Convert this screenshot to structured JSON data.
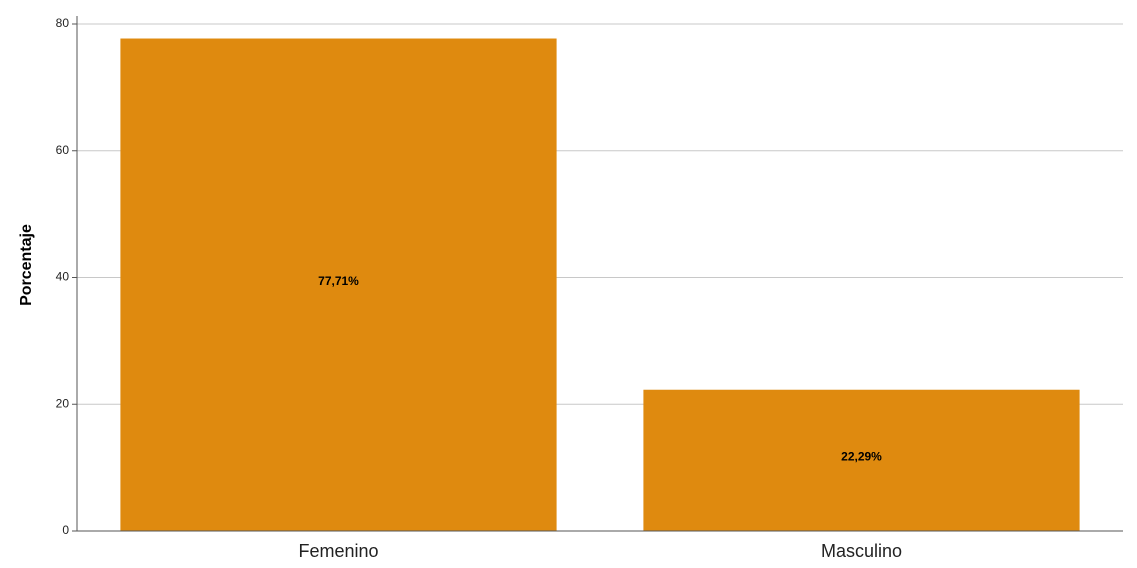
{
  "chart_data": {
    "type": "bar",
    "title": "",
    "xlabel": "",
    "ylabel": "Porcentaje",
    "categories": [
      "Femenino",
      "Masculino"
    ],
    "values": [
      77.71,
      22.29
    ],
    "data_labels": [
      "77,71%",
      "22,29%"
    ],
    "ylim": [
      0,
      80
    ],
    "y_ticks": [
      0,
      20,
      40,
      60,
      80
    ],
    "y_tick_labels": [
      "0",
      "20",
      "40",
      "60",
      "80"
    ],
    "grid": true,
    "legend": "none",
    "bar_color": "#df8a0f",
    "grid_color": "#c8c8c8",
    "axis_color": "#555555"
  }
}
